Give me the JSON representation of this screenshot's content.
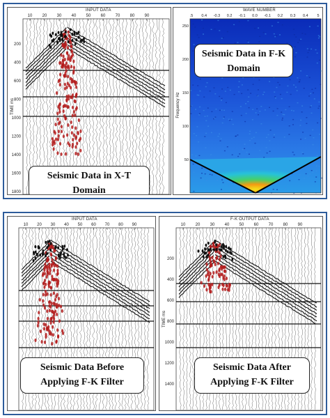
{
  "panels": {
    "xt": {
      "title": "INPUT DATA",
      "axis_label": "TIME ms",
      "x_ticks": [
        "10",
        "20",
        "30",
        "40",
        "50",
        "60",
        "70",
        "80",
        "90"
      ],
      "y_ticks": [
        "200",
        "400",
        "600",
        "800",
        "1000",
        "1200",
        "1400",
        "1600",
        "1800"
      ],
      "caption": {
        "line1": "Seismic Data in X-T",
        "line2": "Domain"
      }
    },
    "fk": {
      "title": "WAVE NUMBER",
      "axis_label": "Frequency Hz",
      "x_ticks": [
        ".5",
        "0.4",
        "-0.3",
        "0.2",
        "-0.1",
        "0.0",
        "-0.1",
        "0.2",
        "0.3",
        "0.4",
        "5"
      ],
      "y_ticks": [
        "250",
        "200",
        "150",
        "100",
        "50"
      ],
      "caption": {
        "line1": "Seismic Data in F-K",
        "line2": "Domain"
      }
    },
    "before": {
      "title": "INPUT DATA",
      "x_ticks": [
        "10",
        "20",
        "30",
        "40",
        "50",
        "60",
        "70",
        "80",
        "90"
      ],
      "caption": {
        "line1": "Seismic Data Before",
        "line2": "Applying F-K Filter"
      }
    },
    "after": {
      "title": "F-K OUTPUT DATA",
      "axis_label": "TIME ms",
      "x_ticks": [
        "10",
        "20",
        "30",
        "40",
        "50",
        "60",
        "70",
        "80",
        "90"
      ],
      "y_ticks": [
        "200",
        "400",
        "600",
        "800",
        "1000",
        "1200",
        "1400"
      ],
      "caption": {
        "line1": "Seismic Data After",
        "line2": "Applying F-K Filter"
      }
    }
  },
  "colors": {
    "frame": "#2e5c9a",
    "trace": "#222222",
    "event": "#b31b1b",
    "fk_background": "#1f4fd1"
  }
}
